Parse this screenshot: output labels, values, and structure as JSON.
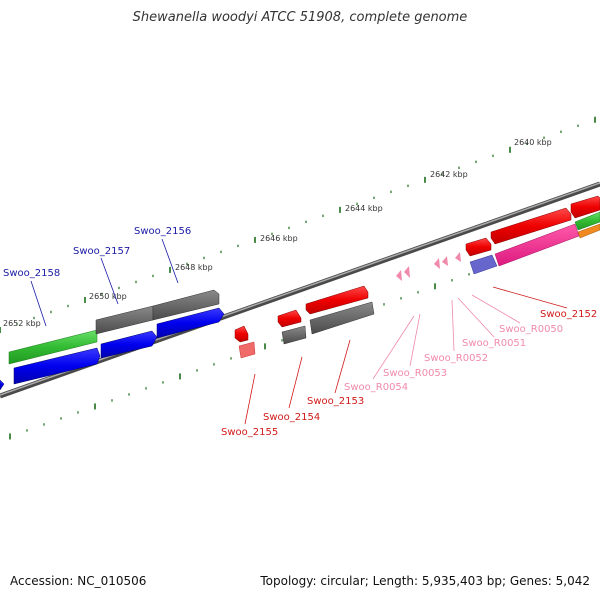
{
  "title": "Shewanella woodyi ATCC 51908, complete genome",
  "footer": {
    "accession": "Accession: NC_010506",
    "summary": "Topology: circular; Length: 5,935,403 bp; Genes: 5,042"
  },
  "colors": {
    "backbone": "#777777",
    "tick": "#1a6e1a",
    "gene_blue_label": "#1a1aa6",
    "gene_red_label": "#d11a1a",
    "rna_label": "#f08aaa"
  },
  "scale_labels": [
    "2640 kbp",
    "2642 kbp",
    "2644 kbp",
    "2646 kbp",
    "2648 kbp",
    "2650 kbp",
    "2652 kbp"
  ],
  "gene_labels_left": [
    "Swoo_2158",
    "Swoo_2157",
    "Swoo_2156"
  ],
  "gene_labels_bottom": [
    "Swoo_2155",
    "Swoo_2154",
    "Swoo_2153",
    "Swoo_R0054",
    "Swoo_R0053",
    "Swoo_R0052",
    "Swoo_R0051",
    "Swoo_R0050",
    "Swoo_2152"
  ]
}
